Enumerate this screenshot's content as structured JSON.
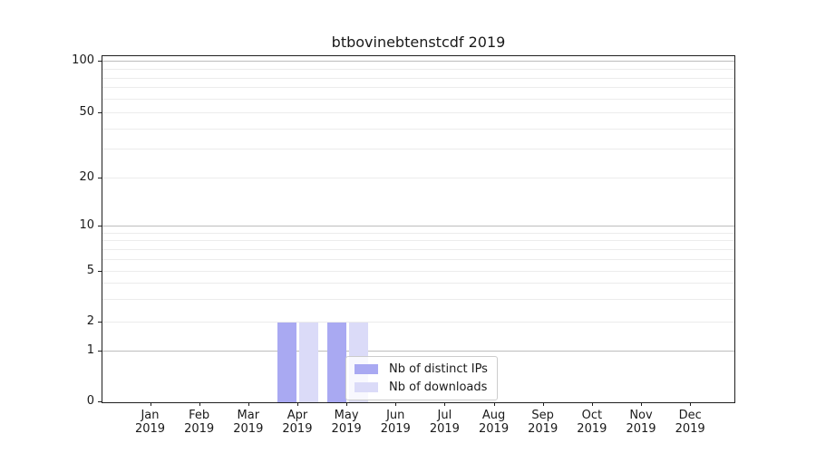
{
  "chart_data": {
    "type": "bar",
    "title": "btbovinebtenstcdf 2019",
    "x_axis": {
      "categories": [
        "Jan",
        "Feb",
        "Mar",
        "Apr",
        "May",
        "Jun",
        "Jul",
        "Aug",
        "Sep",
        "Oct",
        "Nov",
        "Dec"
      ],
      "year_label": "2019"
    },
    "y_axis": {
      "ticks": [
        0,
        1,
        2,
        5,
        10,
        20,
        50,
        100
      ],
      "scale": "log-like (linear below 1)",
      "ylim": [
        0,
        110
      ],
      "grid": "horizontal, minor light / major darker at 1, 10, 100"
    },
    "series": [
      {
        "name": "Nb of distinct IPs",
        "color": "#a9a9f2",
        "values": [
          0,
          0,
          0,
          2,
          2,
          0,
          0,
          0,
          0,
          0,
          0,
          0
        ]
      },
      {
        "name": "Nb of downloads",
        "color": "#dbdbf8",
        "values": [
          0,
          0,
          0,
          2,
          2,
          0,
          0,
          0,
          0,
          0,
          0,
          0
        ]
      }
    ],
    "legend": {
      "position": "inside lower-left of plot",
      "entries": [
        "Nb of distinct IPs",
        "Nb of downloads"
      ]
    }
  },
  "colors": {
    "background": "#ffffff",
    "spine": "#1f1f1f",
    "minor_grid": "#ececec",
    "major_grid": "#bdbdbd",
    "text": "#1a1a1a"
  }
}
